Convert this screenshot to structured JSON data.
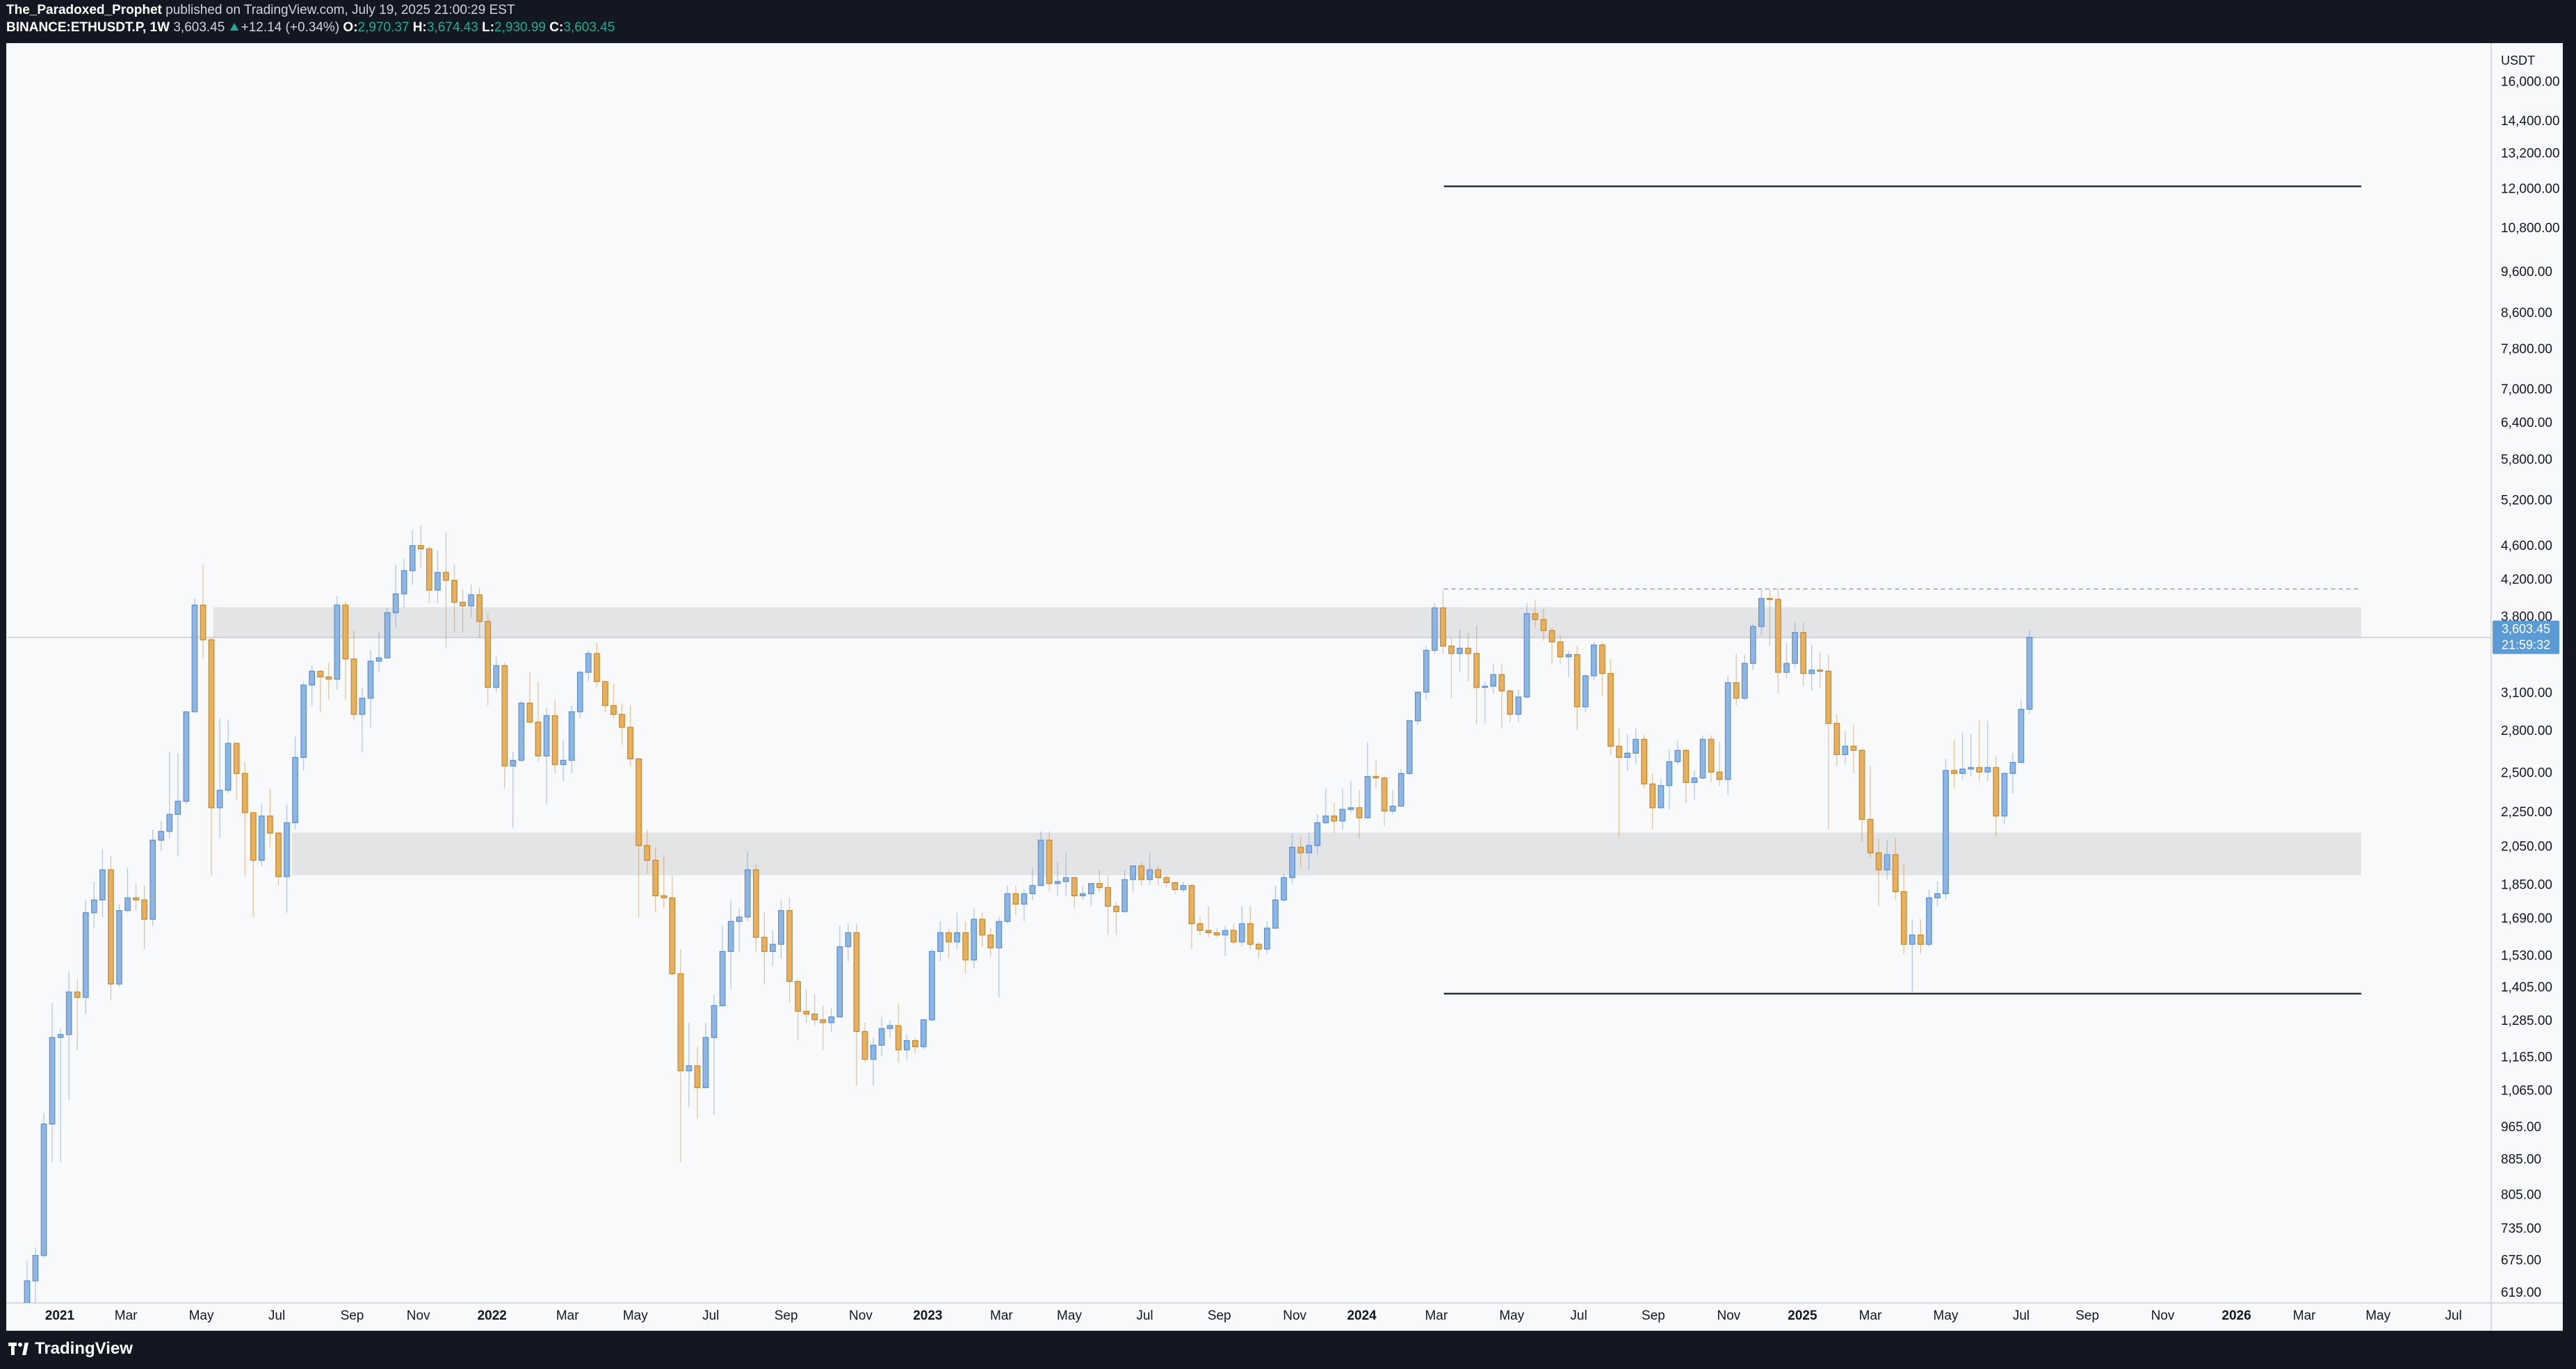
{
  "header": {
    "author": "The_Paradoxed_Prophet",
    "published": "published on TradingView.com, July 19, 2025 21:00:29 EST",
    "symbol": "BINANCE:ETHUSDT.P, 1W",
    "last": "3,603.45",
    "change": "+12.14 (+0.34%)",
    "o_label": "O:",
    "o": "2,970.37",
    "h_label": "H:",
    "h": "3,674.43",
    "l_label": "L:",
    "l": "2,930.99",
    "c_label": "C:",
    "c": "3,603.45"
  },
  "footer": {
    "brand": "TradingView"
  },
  "chart_data": {
    "type": "candlestick",
    "currency": "USDT",
    "log_scale": true,
    "grid": false,
    "up_color": "#8fb5e3",
    "up_border": "#5a8fcf",
    "down_color": "#e6b062",
    "down_border": "#c4862a",
    "last_price_label": "3,603.45",
    "countdown": "21:59:32",
    "price_label_color": "#5b9bd5",
    "xlim": [
      -1.4,
      295.1
    ],
    "ylim": [
      603,
      17710
    ],
    "xticks": [
      {
        "value": 4.9,
        "label": "2021"
      },
      {
        "value": 12.8,
        "label": "Mar"
      },
      {
        "value": 21.8,
        "label": "May"
      },
      {
        "value": 30.8,
        "label": "Jul"
      },
      {
        "value": 39.8,
        "label": "Sep"
      },
      {
        "value": 47.7,
        "label": "Nov"
      },
      {
        "value": 56.5,
        "label": "2022"
      },
      {
        "value": 65.5,
        "label": "Mar"
      },
      {
        "value": 73.6,
        "label": "May"
      },
      {
        "value": 82.6,
        "label": "Jul"
      },
      {
        "value": 91.6,
        "label": "Sep"
      },
      {
        "value": 100.5,
        "label": "Nov"
      },
      {
        "value": 108.5,
        "label": "2023"
      },
      {
        "value": 117.3,
        "label": "Mar"
      },
      {
        "value": 125.4,
        "label": "May"
      },
      {
        "value": 134.4,
        "label": "Jul"
      },
      {
        "value": 143.3,
        "label": "Sep"
      },
      {
        "value": 152.3,
        "label": "Nov"
      },
      {
        "value": 160.3,
        "label": "2024"
      },
      {
        "value": 169.2,
        "label": "Mar"
      },
      {
        "value": 178.2,
        "label": "May"
      },
      {
        "value": 186.2,
        "label": "Jul"
      },
      {
        "value": 195.1,
        "label": "Sep"
      },
      {
        "value": 204.1,
        "label": "Nov"
      },
      {
        "value": 212.9,
        "label": "2025"
      },
      {
        "value": 221.0,
        "label": "Mar"
      },
      {
        "value": 230.0,
        "label": "May"
      },
      {
        "value": 239.0,
        "label": "Jul"
      },
      {
        "value": 246.9,
        "label": "Sep"
      },
      {
        "value": 255.9,
        "label": "Nov"
      },
      {
        "value": 264.7,
        "label": "2026"
      },
      {
        "value": 272.8,
        "label": "Mar"
      },
      {
        "value": 281.6,
        "label": "May"
      },
      {
        "value": 290.6,
        "label": "Jul"
      }
    ],
    "yticks": [
      {
        "value": 16000,
        "label": "16,000.00"
      },
      {
        "value": 14400,
        "label": "14,400.00"
      },
      {
        "value": 13200,
        "label": "13,200.00"
      },
      {
        "value": 12000,
        "label": "12,000.00"
      },
      {
        "value": 10800,
        "label": "10,800.00"
      },
      {
        "value": 9600,
        "label": "9,600.00"
      },
      {
        "value": 8600,
        "label": "8,600.00"
      },
      {
        "value": 7800,
        "label": "7,800.00"
      },
      {
        "value": 7000,
        "label": "7,000.00"
      },
      {
        "value": 6400,
        "label": "6,400.00"
      },
      {
        "value": 5800,
        "label": "5,800.00"
      },
      {
        "value": 5200,
        "label": "5,200.00"
      },
      {
        "value": 4600,
        "label": "4,600.00"
      },
      {
        "value": 4200,
        "label": "4,200.00"
      },
      {
        "value": 3800,
        "label": "3,800.00"
      },
      {
        "value": 3100,
        "label": "3,100.00"
      },
      {
        "value": 2800,
        "label": "2,800.00"
      },
      {
        "value": 2500,
        "label": "2,500.00"
      },
      {
        "value": 2250,
        "label": "2,250.00"
      },
      {
        "value": 2050,
        "label": "2,050.00"
      },
      {
        "value": 1850,
        "label": "1,850.00"
      },
      {
        "value": 1690,
        "label": "1,690.00"
      },
      {
        "value": 1530,
        "label": "1,530.00"
      },
      {
        "value": 1405,
        "label": "1,405.00"
      },
      {
        "value": 1285,
        "label": "1,285.00"
      },
      {
        "value": 1165,
        "label": "1,165.00"
      },
      {
        "value": 1065,
        "label": "1,065.00"
      },
      {
        "value": 965,
        "label": "965.00"
      },
      {
        "value": 885,
        "label": "885.00"
      },
      {
        "value": 805,
        "label": "805.00"
      },
      {
        "value": 735,
        "label": "735.00"
      },
      {
        "value": 675,
        "label": "675.00"
      },
      {
        "value": 619,
        "label": "619.00"
      }
    ],
    "zones": [
      {
        "from": 23.2,
        "to": 279.6,
        "low": 3593,
        "high": 3907,
        "color": "#dfe0e2"
      },
      {
        "from": 32.6,
        "to": 279.6,
        "low": 1902,
        "high": 2133,
        "color": "#dfe0e2"
      }
    ],
    "levels": [
      {
        "from": 170.1,
        "to": 279.6,
        "value": 12100,
        "style": "solid",
        "color": "#2a2e39"
      },
      {
        "from": 170.1,
        "to": 279.6,
        "value": 1384,
        "style": "solid",
        "color": "#2a2e39"
      },
      {
        "from": 170.1,
        "to": 279.6,
        "value": 4103,
        "style": "dashed",
        "color": "#9aa0a8"
      }
    ],
    "open": [
      588,
      590,
      640,
      685,
      975,
      1230,
      1240,
      1390,
      1370,
      1720,
      1780,
      1930,
      1420,
      1730,
      1790,
      1780,
      1690,
      2090,
      2140,
      2240,
      2320,
      2950,
      3930,
      3580,
      2280,
      2390,
      2710,
      2500,
      2250,
      1980,
      2230,
      2130,
      1895,
      2190,
      2610,
      3170,
      3290,
      3240,
      3220,
      3930,
      3400,
      2930,
      3060,
      3380,
      3410,
      3850,
      4050,
      4310,
      4610,
      4570,
      4090,
      4290,
      4200,
      3960,
      3920,
      4040,
      3760,
      3150,
      3340,
      2550,
      2590,
      3020,
      2870,
      2620,
      2920,
      2560,
      2590,
      2950,
      3280,
      3450,
      3200,
      3000,
      2930,
      2830,
      2600,
      2060,
      1980,
      1800,
      1790,
      1460,
      1125,
      1140,
      1075,
      1230,
      1340,
      1550,
      1680,
      1700,
      1930,
      1610,
      1550,
      1580,
      1730,
      1430,
      1320,
      1310,
      1290,
      1280,
      1300,
      1570,
      1630,
      1250,
      1160,
      1205,
      1260,
      1270,
      1190,
      1220,
      1200,
      1290,
      1550,
      1630,
      1590,
      1630,
      1515,
      1690,
      1620,
      1565,
      1680,
      1810,
      1760,
      1810,
      1850,
      2090,
      1860,
      1870,
      1890,
      1800,
      1810,
      1860,
      1840,
      1750,
      1725,
      1880,
      1950,
      1880,
      1930,
      1890,
      1865,
      1830,
      1850,
      1670,
      1640,
      1630,
      1620,
      1640,
      1590,
      1670,
      1580,
      1560,
      1650,
      1780,
      1890,
      2050,
      2020,
      2060,
      2190,
      2230,
      2200,
      2270,
      2280,
      2220,
      2480,
      2470,
      2260,
      2290,
      2500,
      2880,
      3110,
      3480,
      3900,
      3520,
      3450,
      3500,
      3450,
      3150,
      3160,
      3260,
      3120,
      2930,
      3070,
      3840,
      3780,
      3670,
      3560,
      3420,
      3440,
      2990,
      3250,
      3530,
      3270,
      2690,
      2610,
      2640,
      2740,
      2430,
      2280,
      2420,
      2580,
      2660,
      2440,
      2470,
      2740,
      2510,
      2460,
      3190,
      3060,
      3360,
      3710,
      4000,
      3990,
      3280,
      3360,
      3650,
      3270,
      3300,
      3290,
      2860,
      2630,
      2690,
      2660,
      2210,
      2020,
      1930,
      2010,
      1820,
      1580,
      1620,
      1580,
      1790,
      1810,
      2520,
      2500,
      2530,
      2540,
      2510,
      2540,
      2230,
      2500,
      2575,
      2970.37
    ],
    "high": [
      596,
      675,
      700,
      1005,
      1350,
      1260,
      1470,
      1440,
      1780,
      1870,
      2040,
      2000,
      1760,
      1940,
      1860,
      1850,
      2150,
      2200,
      2650,
      2640,
      2950,
      4000,
      4380,
      3600,
      2900,
      2890,
      2710,
      2580,
      2250,
      2300,
      2400,
      2140,
      2300,
      2760,
      3200,
      3340,
      3300,
      3370,
      4030,
      3970,
      3670,
      3150,
      3480,
      3650,
      3900,
      4380,
      4450,
      4810,
      4870,
      4600,
      4550,
      4780,
      4380,
      4100,
      4150,
      4120,
      3840,
      3420,
      3370,
      2650,
      3040,
      3280,
      3200,
      2980,
      3050,
      2730,
      3000,
      3300,
      3480,
      3550,
      3200,
      3180,
      3020,
      3000,
      2600,
      2150,
      2050,
      2010,
      1900,
      1560,
      1280,
      1200,
      1280,
      1380,
      1660,
      1780,
      1740,
      2030,
      1960,
      1720,
      1640,
      1780,
      1790,
      1440,
      1400,
      1380,
      1340,
      1330,
      1660,
      1670,
      1670,
      1280,
      1230,
      1300,
      1290,
      1350,
      1240,
      1230,
      1290,
      1560,
      1680,
      1650,
      1720,
      1680,
      1740,
      1720,
      1650,
      1700,
      1850,
      1850,
      1830,
      1940,
      2140,
      2140,
      1970,
      2020,
      1890,
      1850,
      1860,
      1930,
      1900,
      1770,
      1930,
      1950,
      1970,
      2020,
      1950,
      1900,
      1870,
      1870,
      1860,
      1700,
      1750,
      1650,
      1660,
      1670,
      1750,
      1750,
      1590,
      1680,
      1850,
      1910,
      2130,
      2110,
      2130,
      2240,
      2400,
      2310,
      2400,
      2450,
      2390,
      2720,
      2590,
      2480,
      2390,
      2530,
      2890,
      3120,
      3520,
      3950,
      4090,
      3600,
      3680,
      3650,
      3720,
      3200,
      3350,
      3350,
      3140,
      3130,
      3950,
      3980,
      3890,
      3700,
      3630,
      3480,
      3520,
      3260,
      3560,
      3560,
      3400,
      2820,
      2780,
      2820,
      2770,
      2500,
      2460,
      2670,
      2730,
      2670,
      2520,
      2770,
      2770,
      2720,
      3250,
      3450,
      3440,
      3740,
      4100,
      4100,
      4110,
      3550,
      3750,
      3750,
      3530,
      3470,
      3440,
      2930,
      2800,
      2850,
      2670,
      2550,
      2100,
      2090,
      2100,
      1960,
      1690,
      1690,
      1830,
      1870,
      2600,
      2740,
      2790,
      2780,
      2880,
      2880,
      2620,
      2510,
      2640,
      3050,
      3674.43
    ],
    "low": [
      533,
      585,
      550,
      680,
      880,
      880,
      1040,
      1190,
      1310,
      1650,
      1700,
      1360,
      1410,
      1720,
      1730,
      1560,
      1660,
      2030,
      2100,
      2000,
      2300,
      2950,
      3400,
      1900,
      2100,
      2370,
      2330,
      1900,
      1700,
      1950,
      2050,
      1850,
      1720,
      2150,
      2520,
      3000,
      2950,
      3050,
      3130,
      3050,
      2880,
      2650,
      2830,
      3280,
      3400,
      3700,
      3900,
      4150,
      4350,
      3950,
      3950,
      3500,
      3650,
      3650,
      3800,
      3600,
      3000,
      3110,
      2400,
      2160,
      2580,
      2850,
      2580,
      2300,
      2500,
      2450,
      2500,
      2900,
      3200,
      3150,
      2950,
      2900,
      2700,
      2550,
      1700,
      1910,
      1720,
      1740,
      1450,
      880,
      1020,
      990,
      1075,
      1000,
      1340,
      1400,
      1550,
      1680,
      1550,
      1420,
      1490,
      1520,
      1350,
      1220,
      1280,
      1270,
      1190,
      1250,
      1300,
      1510,
      1080,
      1150,
      1080,
      1170,
      1230,
      1150,
      1160,
      1180,
      1190,
      1285,
      1510,
      1520,
      1560,
      1460,
      1480,
      1570,
      1530,
      1370,
      1670,
      1710,
      1680,
      1780,
      1850,
      1820,
      1800,
      1800,
      1740,
      1780,
      1750,
      1820,
      1620,
      1620,
      1720,
      1820,
      1850,
      1850,
      1850,
      1840,
      1810,
      1820,
      1560,
      1620,
      1610,
      1610,
      1530,
      1580,
      1570,
      1560,
      1520,
      1540,
      1650,
      1770,
      1860,
      1940,
      1930,
      2010,
      2180,
      2130,
      2150,
      2250,
      2100,
      2210,
      2400,
      2170,
      2240,
      2290,
      2490,
      2850,
      3050,
      3450,
      3450,
      3060,
      3280,
      3200,
      2850,
      2860,
      3100,
      2820,
      2870,
      2870,
      3060,
      3700,
      3570,
      3360,
      3360,
      3240,
      2810,
      2950,
      3210,
      3080,
      2630,
      2110,
      2520,
      2560,
      2400,
      2150,
      2270,
      2270,
      2560,
      2310,
      2330,
      2460,
      2440,
      2420,
      2360,
      3000,
      3040,
      3300,
      3620,
      3520,
      3100,
      3230,
      3320,
      3160,
      3120,
      3150,
      2150,
      2550,
      2560,
      2500,
      2080,
      1990,
      1750,
      1880,
      1780,
      1540,
      1385,
      1540,
      1570,
      1750,
      1780,
      2400,
      2460,
      2480,
      2450,
      2450,
      2110,
      2180,
      2370,
      2570,
      2930.99
    ],
    "close": [
      590,
      640,
      685,
      975,
      1230,
      1240,
      1390,
      1370,
      1720,
      1780,
      1930,
      1420,
      1730,
      1790,
      1780,
      1690,
      2090,
      2140,
      2240,
      2320,
      2950,
      3930,
      3580,
      2280,
      2390,
      2710,
      2500,
      2250,
      1980,
      2230,
      2130,
      1895,
      2190,
      2610,
      3170,
      3290,
      3240,
      3220,
      3930,
      3400,
      2930,
      3060,
      3380,
      3410,
      3850,
      4050,
      4310,
      4610,
      4570,
      4090,
      4290,
      4200,
      3960,
      3920,
      4040,
      3760,
      3150,
      3340,
      2550,
      2590,
      3020,
      2870,
      2620,
      2920,
      2560,
      2590,
      2950,
      3280,
      3450,
      3200,
      3000,
      2930,
      2830,
      2600,
      2060,
      1980,
      1800,
      1790,
      1460,
      1125,
      1140,
      1075,
      1230,
      1340,
      1550,
      1680,
      1700,
      1930,
      1610,
      1550,
      1580,
      1730,
      1430,
      1320,
      1310,
      1290,
      1280,
      1300,
      1570,
      1630,
      1250,
      1160,
      1205,
      1260,
      1270,
      1190,
      1220,
      1200,
      1290,
      1550,
      1630,
      1590,
      1630,
      1515,
      1690,
      1620,
      1565,
      1680,
      1810,
      1760,
      1810,
      1850,
      2090,
      1860,
      1870,
      1890,
      1800,
      1810,
      1860,
      1840,
      1750,
      1725,
      1880,
      1950,
      1880,
      1930,
      1890,
      1865,
      1830,
      1850,
      1670,
      1640,
      1630,
      1620,
      1640,
      1590,
      1670,
      1580,
      1560,
      1650,
      1780,
      1890,
      2050,
      2020,
      2060,
      2190,
      2230,
      2200,
      2270,
      2280,
      2220,
      2480,
      2470,
      2260,
      2290,
      2500,
      2880,
      3110,
      3480,
      3900,
      3520,
      3450,
      3500,
      3450,
      3150,
      3160,
      3260,
      3120,
      2930,
      3070,
      3840,
      3780,
      3670,
      3560,
      3420,
      3440,
      2990,
      3250,
      3530,
      3270,
      2690,
      2610,
      2640,
      2740,
      2430,
      2280,
      2420,
      2580,
      2660,
      2440,
      2470,
      2740,
      2510,
      2460,
      3190,
      3060,
      3360,
      3710,
      4000,
      3990,
      3280,
      3360,
      3650,
      3270,
      3300,
      3290,
      2860,
      2630,
      2690,
      2660,
      2210,
      2020,
      1930,
      2010,
      1820,
      1580,
      1620,
      1580,
      1790,
      1810,
      2520,
      2500,
      2530,
      2540,
      2510,
      2540,
      2230,
      2500,
      2575,
      2970,
      3603.45
    ]
  }
}
